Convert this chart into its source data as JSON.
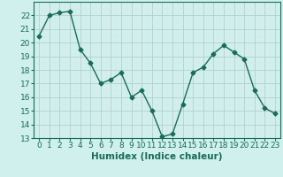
{
  "x": [
    0,
    1,
    2,
    3,
    4,
    5,
    6,
    7,
    8,
    9,
    10,
    11,
    12,
    13,
    14,
    15,
    16,
    17,
    18,
    19,
    20,
    21,
    22,
    23
  ],
  "y": [
    20.5,
    22.0,
    22.2,
    22.3,
    19.5,
    18.5,
    17.0,
    17.3,
    17.8,
    16.0,
    16.5,
    15.0,
    13.1,
    13.3,
    15.5,
    17.8,
    18.2,
    19.2,
    19.8,
    19.3,
    18.8,
    16.5,
    15.2,
    14.8
  ],
  "line_color": "#1a6b5a",
  "marker": "D",
  "marker_size": 2.5,
  "bg_color": "#cff0ec",
  "grid_major_color": "#b8cece",
  "grid_minor_color": "#d8e8e6",
  "xlabel": "Humidex (Indice chaleur)",
  "ylim_min": 13,
  "ylim_max": 23,
  "xlim_min": -0.5,
  "xlim_max": 23.5,
  "yticks": [
    13,
    14,
    15,
    16,
    17,
    18,
    19,
    20,
    21,
    22
  ],
  "xticks": [
    0,
    1,
    2,
    3,
    4,
    5,
    6,
    7,
    8,
    9,
    10,
    11,
    12,
    13,
    14,
    15,
    16,
    17,
    18,
    19,
    20,
    21,
    22,
    23
  ],
  "tick_fontsize": 6.5,
  "label_fontsize": 7.5,
  "line_width": 1.0
}
